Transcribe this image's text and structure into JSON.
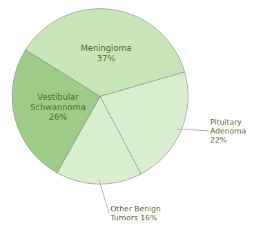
{
  "chart_data": {
    "type": "pie",
    "values": [
      37,
      22,
      16,
      26
    ],
    "value_labels": [
      "Meningioma\n37%",
      "Pituitary\nAdenoma\n22%",
      "Other Benign\nTumors 16%",
      "Vestibular\nSchwannoma\n26%"
    ],
    "data_labels": true,
    "colors": [
      "#c8e6b8",
      "#d8eece",
      "#d8eece",
      "#9ecb88"
    ]
  }
}
